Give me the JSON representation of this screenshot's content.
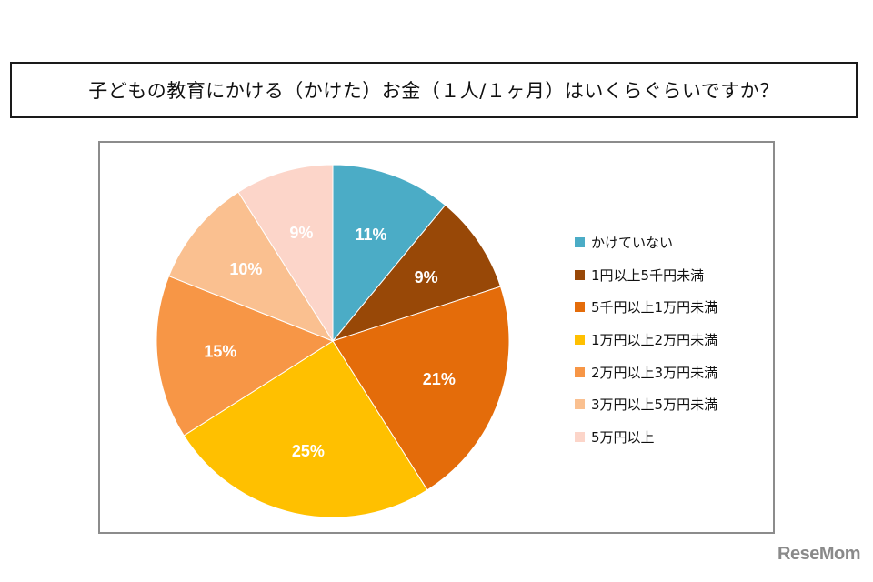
{
  "title": "子どもの教育にかける（かけた）お金（１人/１ヶ月）はいくらぐらいですか？",
  "watermark": "ReseMom",
  "chart_data": {
    "type": "pie",
    "title": "子どもの教育にかける（かけた）お金（１人/１ヶ月）はいくらぐらいですか？",
    "categories": [
      "かけていない",
      "1円以上5千円未満",
      "5千円以上1万円未満",
      "1万円以上2万円未満",
      "2万円以上3万円未満",
      "3万円以上5万円未満",
      "5万円以上"
    ],
    "values": [
      11,
      9,
      21,
      25,
      15,
      10,
      9
    ],
    "labels": [
      "11%",
      "9%",
      "21%",
      "25%",
      "15%",
      "10%",
      "9%"
    ],
    "colors": [
      "#4BACC6",
      "#984807",
      "#E46C0A",
      "#FFC000",
      "#F79646",
      "#FAC090",
      "#FCD5C9"
    ],
    "legend_position": "right",
    "start_angle": "12 o'clock",
    "direction": "clockwise"
  }
}
